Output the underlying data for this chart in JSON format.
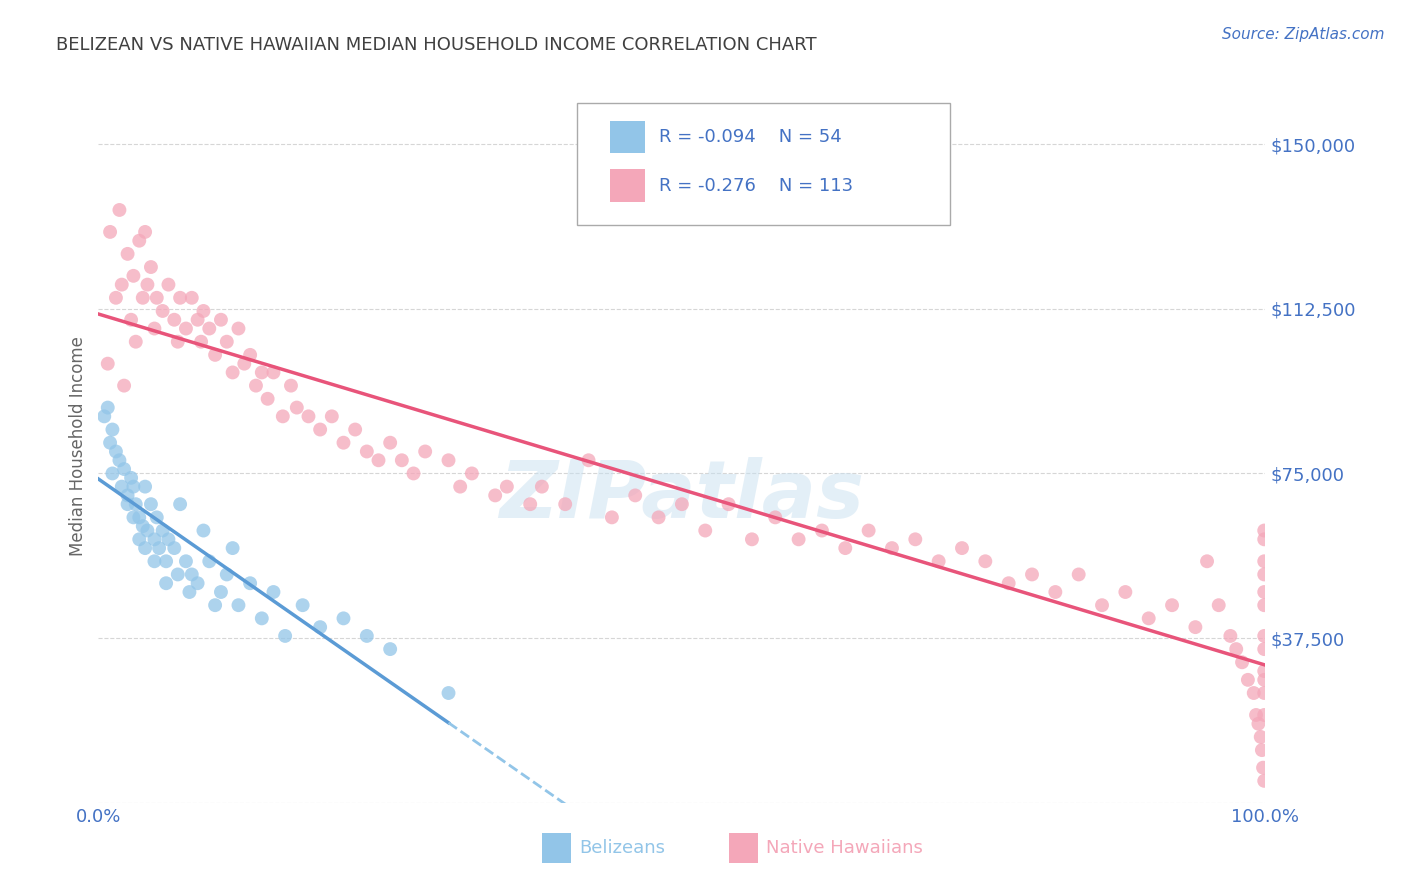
{
  "title": "BELIZEAN VS NATIVE HAWAIIAN MEDIAN HOUSEHOLD INCOME CORRELATION CHART",
  "source": "Source: ZipAtlas.com",
  "ylabel": "Median Household Income",
  "ytick_vals": [
    0,
    37500,
    75000,
    112500,
    150000
  ],
  "ytick_labels": [
    "",
    "$37,500",
    "$75,000",
    "$112,500",
    "$150,000"
  ],
  "xlim": [
    0.0,
    1.0
  ],
  "ylim": [
    0,
    162500
  ],
  "belizean_scatter_color": "#92C5E8",
  "native_scatter_color": "#F4A7B9",
  "belizean_line_solid_color": "#5B9BD5",
  "belizean_line_dash_color": "#92C5E8",
  "native_line_color": "#E8547A",
  "axis_color": "#4472C4",
  "title_color": "#404040",
  "background_color": "#FFFFFF",
  "grid_color": "#CCCCCC",
  "watermark": "ZIPatlas",
  "R_belizean": -0.094,
  "N_belizean": 54,
  "R_native": -0.276,
  "N_native": 113,
  "legend_label_belizean": "Belizeans",
  "legend_label_native": "Native Hawaiians",
  "belizean_x": [
    0.005,
    0.008,
    0.01,
    0.012,
    0.012,
    0.015,
    0.018,
    0.02,
    0.022,
    0.025,
    0.025,
    0.028,
    0.03,
    0.03,
    0.032,
    0.035,
    0.035,
    0.038,
    0.04,
    0.04,
    0.042,
    0.045,
    0.048,
    0.048,
    0.05,
    0.052,
    0.055,
    0.058,
    0.058,
    0.06,
    0.065,
    0.068,
    0.07,
    0.075,
    0.078,
    0.08,
    0.085,
    0.09,
    0.095,
    0.1,
    0.105,
    0.11,
    0.115,
    0.12,
    0.13,
    0.14,
    0.15,
    0.16,
    0.175,
    0.19,
    0.21,
    0.23,
    0.25,
    0.3
  ],
  "belizean_y": [
    88000,
    90000,
    82000,
    85000,
    75000,
    80000,
    78000,
    72000,
    76000,
    70000,
    68000,
    74000,
    72000,
    65000,
    68000,
    65000,
    60000,
    63000,
    72000,
    58000,
    62000,
    68000,
    60000,
    55000,
    65000,
    58000,
    62000,
    55000,
    50000,
    60000,
    58000,
    52000,
    68000,
    55000,
    48000,
    52000,
    50000,
    62000,
    55000,
    45000,
    48000,
    52000,
    58000,
    45000,
    50000,
    42000,
    48000,
    38000,
    45000,
    40000,
    42000,
    38000,
    35000,
    25000
  ],
  "native_x": [
    0.008,
    0.01,
    0.015,
    0.018,
    0.02,
    0.022,
    0.025,
    0.028,
    0.03,
    0.032,
    0.035,
    0.038,
    0.04,
    0.042,
    0.045,
    0.048,
    0.05,
    0.055,
    0.06,
    0.065,
    0.068,
    0.07,
    0.075,
    0.08,
    0.085,
    0.088,
    0.09,
    0.095,
    0.1,
    0.105,
    0.11,
    0.115,
    0.12,
    0.125,
    0.13,
    0.135,
    0.14,
    0.145,
    0.15,
    0.158,
    0.165,
    0.17,
    0.18,
    0.19,
    0.2,
    0.21,
    0.22,
    0.23,
    0.24,
    0.25,
    0.26,
    0.27,
    0.28,
    0.3,
    0.31,
    0.32,
    0.34,
    0.35,
    0.37,
    0.38,
    0.4,
    0.42,
    0.44,
    0.46,
    0.48,
    0.5,
    0.52,
    0.54,
    0.56,
    0.58,
    0.6,
    0.62,
    0.64,
    0.66,
    0.68,
    0.7,
    0.72,
    0.74,
    0.76,
    0.78,
    0.8,
    0.82,
    0.84,
    0.86,
    0.88,
    0.9,
    0.92,
    0.94,
    0.95,
    0.96,
    0.97,
    0.975,
    0.98,
    0.985,
    0.99,
    0.992,
    0.994,
    0.996,
    0.997,
    0.998,
    0.999,
    0.999,
    0.999,
    0.999,
    0.999,
    0.999,
    0.999,
    0.999,
    0.999,
    0.999,
    0.999,
    0.999,
    0.999
  ],
  "native_y": [
    100000,
    130000,
    115000,
    135000,
    118000,
    95000,
    125000,
    110000,
    120000,
    105000,
    128000,
    115000,
    130000,
    118000,
    122000,
    108000,
    115000,
    112000,
    118000,
    110000,
    105000,
    115000,
    108000,
    115000,
    110000,
    105000,
    112000,
    108000,
    102000,
    110000,
    105000,
    98000,
    108000,
    100000,
    102000,
    95000,
    98000,
    92000,
    98000,
    88000,
    95000,
    90000,
    88000,
    85000,
    88000,
    82000,
    85000,
    80000,
    78000,
    82000,
    78000,
    75000,
    80000,
    78000,
    72000,
    75000,
    70000,
    72000,
    68000,
    72000,
    68000,
    78000,
    65000,
    70000,
    65000,
    68000,
    62000,
    68000,
    60000,
    65000,
    60000,
    62000,
    58000,
    62000,
    58000,
    60000,
    55000,
    58000,
    55000,
    50000,
    52000,
    48000,
    52000,
    45000,
    48000,
    42000,
    45000,
    40000,
    55000,
    45000,
    38000,
    35000,
    32000,
    28000,
    25000,
    20000,
    18000,
    15000,
    12000,
    8000,
    5000,
    28000,
    35000,
    45000,
    52000,
    60000,
    62000,
    55000,
    48000,
    38000,
    30000,
    25000,
    20000
  ]
}
